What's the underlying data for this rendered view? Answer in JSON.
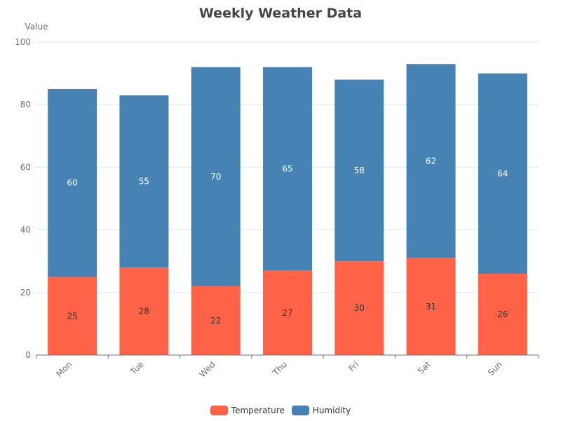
{
  "chart_data": {
    "type": "bar",
    "stacked": true,
    "title": "Weekly Weather Data",
    "ylabel": "Value",
    "xlabel": "",
    "ylim": [
      0,
      100
    ],
    "yticks": [
      0,
      20,
      40,
      60,
      80,
      100
    ],
    "grid": true,
    "legend_position": "bottom-center",
    "categories": [
      "Mon",
      "Tue",
      "Wed",
      "Thu",
      "Fri",
      "Sat",
      "Sun"
    ],
    "series": [
      {
        "name": "Temperature",
        "values": [
          25,
          28,
          22,
          27,
          30,
          31,
          26
        ],
        "color": "#ff6347",
        "label_color": "#333333"
      },
      {
        "name": "Humidity",
        "values": [
          60,
          55,
          70,
          65,
          58,
          62,
          64
        ],
        "color": "#4682b4",
        "label_color": "#ffffff"
      }
    ]
  }
}
